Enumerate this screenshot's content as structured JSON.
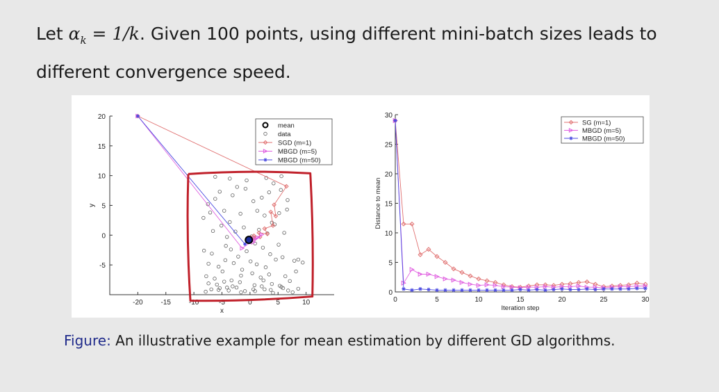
{
  "heading": {
    "prefix": "Let ",
    "math_symbol": "α",
    "math_subscript": "k",
    "math_rest": " = 1/k",
    "suffix": ". Given 100 points, using different mini-batch sizes leads to",
    "line2": "different convergence speed."
  },
  "caption": {
    "label": "Figure:",
    "text": " An illustrative example for mean estimation by different GD algorithms."
  },
  "colors": {
    "sgd": "#e07070",
    "mbgd5": "#e060e0",
    "mbgd50": "#4a4ae0",
    "data": "#606060",
    "mean": "#000000",
    "annotation": "#c0202a"
  },
  "chart_data": [
    {
      "type": "scatter",
      "title": "",
      "xlabel": "x",
      "ylabel": "y",
      "xlim": [
        -25,
        15
      ],
      "ylim": [
        -10,
        20
      ],
      "xticks": [
        -20,
        -15,
        -10,
        -5,
        0,
        5,
        10
      ],
      "yticks": [
        -5,
        0,
        5,
        10,
        15,
        20
      ],
      "xtick_labels": [
        "-20",
        "-15",
        "-10",
        "-5",
        "0",
        "5",
        "10"
      ],
      "ytick_labels": [
        "-5",
        "0",
        "5",
        "10",
        "15",
        "20"
      ],
      "legend_position": "top-right",
      "legend": [
        "mean",
        "data",
        "SGD (m=1)",
        "MBGD (m=5)",
        "MBGD (m=50)"
      ],
      "mean": {
        "x": -0.2,
        "y": -0.8
      },
      "data_points": {
        "x": [
          -7.5,
          -6.2,
          -5.4,
          -3.1,
          -2.3,
          -0.8,
          0.6,
          2.1,
          3.4,
          4.2,
          5.5,
          6.7,
          -8.3,
          -7.1,
          -4.6,
          -3.6,
          -1.7,
          1.3,
          2.6,
          3.9,
          5.2,
          6.6,
          -6.6,
          -5.1,
          -4.1,
          -2.6,
          -1.1,
          0.3,
          1.6,
          3.1,
          4.4,
          6.1,
          -8.2,
          -6.8,
          -4.3,
          -3.4,
          -2.1,
          -0.6,
          0.9,
          2.3,
          3.6,
          5.1,
          -7.4,
          -5.6,
          -4.4,
          -2.9,
          -1.4,
          0.1,
          1.2,
          2.8,
          4.6,
          5.8,
          -7.8,
          -6.3,
          -4.9,
          -3.3,
          -1.6,
          0.4,
          1.9,
          3.4,
          6.3,
          7.9,
          8.6,
          9.4,
          -7.4,
          -5.9,
          -4.6,
          -3.1,
          -1.8,
          0.8,
          2.4,
          3.9,
          5.6,
          7.1,
          8.2,
          -6.9,
          -5.4,
          -3.8,
          -2.4,
          -0.9,
          0.6,
          2.1,
          3.7,
          5.3,
          6.8,
          8.6,
          -7.9,
          -5.6,
          -4.1,
          -1.6,
          0.9,
          2.6,
          4.1,
          5.9,
          7.6,
          -6.2,
          -3.6,
          -0.6,
          2.9,
          5.6
        ],
        "y": [
          5.2,
          6.1,
          7.3,
          6.7,
          8.1,
          7.8,
          5.7,
          6.3,
          7.2,
          8.7,
          7.6,
          5.9,
          2.9,
          3.8,
          4.1,
          2.2,
          3.6,
          4.1,
          3.3,
          2.1,
          3.7,
          4.3,
          0.7,
          1.6,
          -0.3,
          0.6,
          1.3,
          -0.2,
          0.9,
          0.3,
          1.8,
          0.4,
          -2.6,
          -3.1,
          -1.8,
          -2.4,
          -3.6,
          -2.7,
          -1.4,
          -2.1,
          -3.2,
          -1.6,
          -4.8,
          -5.3,
          -4.2,
          -4.7,
          -5.8,
          -4.4,
          -4.9,
          -5.4,
          -4.1,
          -3.7,
          -6.9,
          -7.3,
          -6.1,
          -7.6,
          -6.8,
          -6.4,
          -7.1,
          -6.6,
          -6.9,
          -4.3,
          -4.1,
          -4.6,
          -8.1,
          -8.3,
          -7.8,
          -8.6,
          -7.9,
          -8.4,
          -7.6,
          -8.2,
          -8.7,
          -7.7,
          -6.1,
          -9.1,
          -8.9,
          -9.3,
          -8.8,
          -9.4,
          -9.1,
          -8.6,
          -9.2,
          -8.5,
          -9.3,
          -9.0,
          -9.5,
          -9.2,
          -8.8,
          -9.6,
          -9.4,
          -9.1,
          -9.7,
          -8.9,
          -9.6,
          9.8,
          9.5,
          9.2,
          9.6,
          9.9
        ]
      },
      "series": [
        {
          "name": "SGD (m=1)",
          "x": [
            -20,
            6.5,
            4.3,
            4.6,
            3.7,
            4.1,
            2.6,
            3.1,
            1.6,
            1.8,
            0.7,
            0.9,
            0.1,
            0.3,
            -0.4,
            -0.1,
            -0.3,
            -0.2
          ],
          "y": [
            20,
            8.2,
            5.1,
            3.2,
            3.9,
            1.6,
            1.1,
            0.2,
            0.4,
            -0.3,
            -0.1,
            -0.6,
            -0.4,
            -0.9,
            -0.7,
            -1.1,
            -0.8,
            -0.9
          ]
        },
        {
          "name": "MBGD (m=5)",
          "x": [
            -20,
            -1.4,
            2.1,
            0.6,
            1.4,
            0.2,
            0.8,
            -0.1,
            0.3,
            -0.3,
            -0.2
          ],
          "y": [
            20,
            -2.2,
            0.1,
            -1.2,
            -0.4,
            -1.1,
            -0.6,
            -1.0,
            -0.7,
            -0.9,
            -0.8
          ]
        },
        {
          "name": "MBGD (m=50)",
          "x": [
            -20,
            -0.9,
            -0.4,
            -0.2,
            -0.3,
            -0.2
          ],
          "y": [
            20,
            -1.5,
            -0.9,
            -0.7,
            -0.8,
            -0.8
          ]
        }
      ],
      "annotation": {
        "type": "hand-drawn box",
        "x_range": [
          -11,
          11
        ],
        "y_range": [
          -11,
          10.5
        ]
      }
    },
    {
      "type": "line",
      "title": "",
      "xlabel": "Iteration step",
      "ylabel": "Distance to mean",
      "xlim": [
        0,
        30
      ],
      "ylim": [
        0,
        30
      ],
      "xticks": [
        0,
        5,
        10,
        15,
        20,
        25,
        30
      ],
      "yticks": [
        0,
        5,
        10,
        15,
        20,
        25,
        30
      ],
      "xtick_labels": [
        "0",
        "5",
        "10",
        "15",
        "20",
        "25",
        "30"
      ],
      "ytick_labels": [
        "0",
        "5",
        "10",
        "15",
        "20",
        "25",
        "30"
      ],
      "legend_position": "top-right",
      "x": [
        0,
        1,
        2,
        3,
        4,
        5,
        6,
        7,
        8,
        9,
        10,
        11,
        12,
        13,
        14,
        15,
        16,
        17,
        18,
        19,
        20,
        21,
        22,
        23,
        24,
        25,
        26,
        27,
        28,
        29,
        30
      ],
      "series": [
        {
          "name": "SG (m=1)",
          "values": [
            29,
            11.5,
            11.5,
            6.3,
            7.2,
            6.0,
            5.0,
            3.9,
            3.3,
            2.7,
            2.2,
            1.9,
            1.6,
            1.2,
            0.9,
            0.8,
            1.0,
            1.2,
            1.2,
            1.1,
            1.3,
            1.4,
            1.6,
            1.7,
            1.3,
            0.9,
            1.0,
            1.1,
            1.2,
            1.5,
            1.3
          ]
        },
        {
          "name": "MBGD (m=5)",
          "values": [
            29,
            1.5,
            3.8,
            3.0,
            3.0,
            2.6,
            2.2,
            2.0,
            1.6,
            1.3,
            1.1,
            1.2,
            1.1,
            0.9,
            0.8,
            0.7,
            0.8,
            0.8,
            0.9,
            0.8,
            0.9,
            0.9,
            1.0,
            0.8,
            0.8,
            0.7,
            0.8,
            0.9,
            0.9,
            1.0,
            1.0
          ]
        },
        {
          "name": "MBGD (m=50)",
          "values": [
            29,
            0.5,
            0.3,
            0.5,
            0.4,
            0.3,
            0.3,
            0.3,
            0.3,
            0.3,
            0.3,
            0.3,
            0.3,
            0.3,
            0.3,
            0.4,
            0.3,
            0.4,
            0.3,
            0.4,
            0.5,
            0.4,
            0.4,
            0.5,
            0.4,
            0.5,
            0.5,
            0.5,
            0.5,
            0.6,
            0.6
          ]
        }
      ]
    }
  ]
}
